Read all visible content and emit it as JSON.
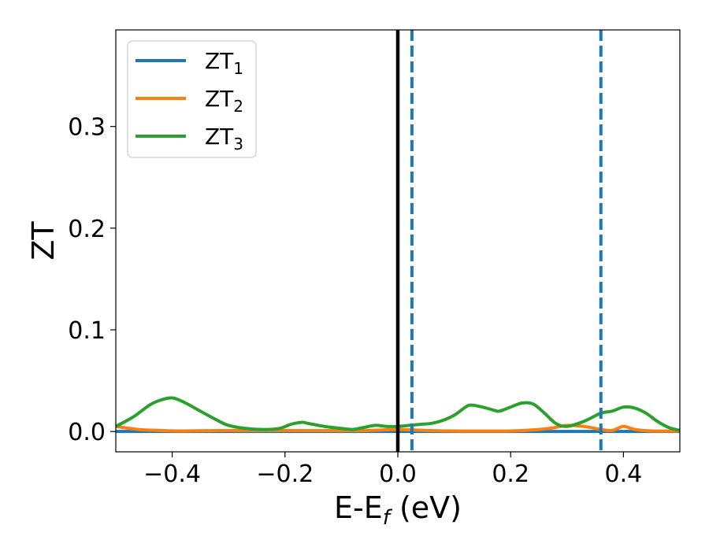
{
  "chart_data": {
    "type": "line",
    "xlabel": "E-E",
    "xlabel_sub": "f",
    "xlabel_unit": " (eV)",
    "ylabel": "ZT",
    "xlim": [
      -0.5,
      0.5
    ],
    "ylim": [
      -0.02,
      0.395
    ],
    "x_ticks": [
      -0.4,
      -0.2,
      0.0,
      0.2,
      0.4
    ],
    "x_tick_labels": [
      "−0.4",
      "−0.2",
      "0.0",
      "0.2",
      "0.4"
    ],
    "y_ticks": [
      0.0,
      0.1,
      0.2,
      0.3
    ],
    "y_tick_labels": [
      "0.0",
      "0.1",
      "0.2",
      "0.3"
    ],
    "grid": false,
    "legend_position": "top-left",
    "vlines": [
      {
        "x": 0.0,
        "style": "solid",
        "color": "#000000"
      },
      {
        "x": 0.025,
        "style": "dashed",
        "color": "#1f77b4"
      },
      {
        "x": 0.36,
        "style": "dashed",
        "color": "#1f77b4"
      }
    ],
    "series": [
      {
        "name": "ZT",
        "name_sub": "1",
        "color": "#1f77b4",
        "x": [
          -0.5,
          -0.25,
          0.0,
          0.25,
          0.5
        ],
        "y": [
          0.0,
          0.0,
          0.0,
          0.0,
          0.0
        ]
      },
      {
        "name": "ZT",
        "name_sub": "2",
        "color": "#ff7f0e",
        "x": [
          -0.5,
          -0.46,
          -0.42,
          -0.38,
          -0.3,
          -0.2,
          -0.1,
          -0.05,
          0.0,
          0.05,
          0.1,
          0.2,
          0.25,
          0.28,
          0.3,
          0.33,
          0.36,
          0.38,
          0.4,
          0.42,
          0.45,
          0.5
        ],
        "y": [
          0.005,
          0.002,
          0.001,
          0.0005,
          0.001,
          0.001,
          0.0008,
          0.001,
          0.002,
          0.001,
          0.0005,
          0.0005,
          0.002,
          0.004,
          0.006,
          0.005,
          0.002,
          0.001,
          0.005,
          0.002,
          0.0005,
          0.0005
        ]
      },
      {
        "name": "ZT",
        "name_sub": "3",
        "color": "#2ca02c",
        "x": [
          -0.5,
          -0.47,
          -0.44,
          -0.42,
          -0.4,
          -0.38,
          -0.35,
          -0.32,
          -0.3,
          -0.27,
          -0.24,
          -0.21,
          -0.19,
          -0.17,
          -0.16,
          -0.15,
          -0.13,
          -0.1,
          -0.08,
          -0.06,
          -0.04,
          -0.02,
          0.0,
          0.02,
          0.04,
          0.06,
          0.08,
          0.1,
          0.12,
          0.13,
          0.15,
          0.17,
          0.18,
          0.2,
          0.22,
          0.24,
          0.26,
          0.28,
          0.3,
          0.33,
          0.36,
          0.38,
          0.4,
          0.42,
          0.44,
          0.46,
          0.48,
          0.5
        ],
        "y": [
          0.005,
          0.014,
          0.026,
          0.031,
          0.033,
          0.029,
          0.02,
          0.011,
          0.006,
          0.003,
          0.002,
          0.003,
          0.007,
          0.009,
          0.008,
          0.007,
          0.005,
          0.003,
          0.002,
          0.004,
          0.006,
          0.005,
          0.005,
          0.006,
          0.007,
          0.008,
          0.011,
          0.016,
          0.024,
          0.026,
          0.024,
          0.021,
          0.02,
          0.024,
          0.028,
          0.027,
          0.018,
          0.008,
          0.005,
          0.01,
          0.018,
          0.02,
          0.024,
          0.023,
          0.018,
          0.01,
          0.004,
          0.001
        ]
      }
    ]
  }
}
